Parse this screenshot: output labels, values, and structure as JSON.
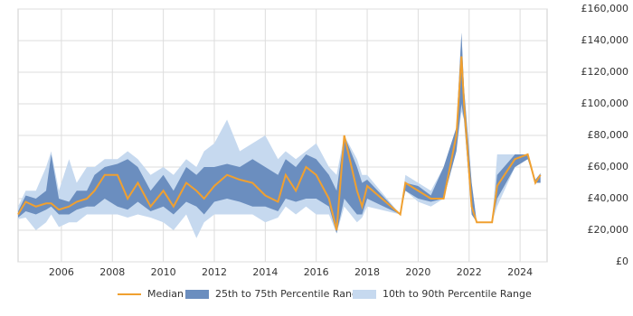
{
  "chart_data": {
    "type": "range-line",
    "x": [
      2004.3,
      2004.6,
      2005.0,
      2005.4,
      2005.6,
      2005.9,
      2006.3,
      2006.6,
      2007.0,
      2007.3,
      2007.7,
      2008.2,
      2008.6,
      2009.0,
      2009.5,
      2010.0,
      2010.4,
      2010.9,
      2011.3,
      2011.6,
      2012.0,
      2012.5,
      2013.0,
      2013.5,
      2014.0,
      2014.5,
      2014.8,
      2015.2,
      2015.6,
      2016.0,
      2016.5,
      2016.8,
      2017.1,
      2017.6,
      2017.8,
      2018.0,
      2019.3,
      2019.5,
      2020.0,
      2020.5,
      2021.0,
      2021.5,
      2021.7,
      2021.8,
      2022.1,
      2022.3,
      2022.9,
      2023.1,
      2023.8,
      2024.3,
      2024.6,
      2024.8
    ],
    "series": [
      {
        "name": "10th to 90th Percentile Range",
        "color": "#c6d9ef",
        "lower": [
          27000,
          28000,
          20000,
          25000,
          30000,
          22000,
          25000,
          25000,
          30000,
          30000,
          30000,
          30000,
          28000,
          30000,
          28000,
          25000,
          20000,
          30000,
          15000,
          25000,
          30000,
          30000,
          30000,
          30000,
          25000,
          28000,
          35000,
          30000,
          35000,
          30000,
          30000,
          18000,
          35000,
          25000,
          28000,
          35000,
          30000,
          45000,
          38000,
          35000,
          40000,
          70000,
          95000,
          90000,
          30000,
          25000,
          25000,
          35000,
          60000,
          65000,
          50000,
          50000
        ],
        "upper": [
          35000,
          45000,
          45000,
          60000,
          70000,
          45000,
          65000,
          50000,
          60000,
          60000,
          65000,
          65000,
          70000,
          65000,
          55000,
          60000,
          55000,
          65000,
          60000,
          70000,
          75000,
          90000,
          70000,
          75000,
          80000,
          65000,
          70000,
          65000,
          70000,
          75000,
          60000,
          55000,
          80000,
          65000,
          55000,
          55000,
          30000,
          55000,
          50000,
          45000,
          60000,
          85000,
          145000,
          110000,
          50000,
          25000,
          25000,
          68000,
          68000,
          68000,
          52000,
          56000
        ]
      },
      {
        "name": "25th to 75th Percentile Range",
        "color": "#6b8ebf",
        "lower": [
          28000,
          32000,
          30000,
          33000,
          35000,
          30000,
          30000,
          33000,
          35000,
          35000,
          40000,
          35000,
          33000,
          38000,
          32000,
          35000,
          30000,
          38000,
          35000,
          30000,
          38000,
          40000,
          38000,
          35000,
          35000,
          32000,
          40000,
          38000,
          40000,
          40000,
          35000,
          18000,
          40000,
          30000,
          30000,
          40000,
          30000,
          45000,
          40000,
          38000,
          40000,
          70000,
          100000,
          90000,
          30000,
          25000,
          25000,
          40000,
          60000,
          65000,
          50000,
          50000
        ],
        "upper": [
          32000,
          42000,
          40000,
          45000,
          68000,
          40000,
          38000,
          45000,
          45000,
          55000,
          60000,
          62000,
          65000,
          60000,
          45000,
          55000,
          45000,
          60000,
          55000,
          60000,
          60000,
          62000,
          60000,
          65000,
          60000,
          55000,
          65000,
          60000,
          68000,
          65000,
          55000,
          45000,
          80000,
          60000,
          50000,
          52000,
          30000,
          50000,
          48000,
          42000,
          60000,
          85000,
          145000,
          110000,
          50000,
          25000,
          25000,
          55000,
          68000,
          68000,
          52000,
          56000
        ]
      },
      {
        "name": "Median",
        "color": "#f0a030",
        "values": [
          30000,
          38000,
          35000,
          37000,
          37000,
          33000,
          35000,
          38000,
          40000,
          45000,
          55000,
          55000,
          40000,
          50000,
          35000,
          45000,
          35000,
          50000,
          45000,
          40000,
          48000,
          55000,
          52000,
          50000,
          42000,
          38000,
          55000,
          45000,
          60000,
          55000,
          40000,
          20000,
          80000,
          45000,
          35000,
          48000,
          30000,
          50000,
          45000,
          40000,
          40000,
          80000,
          130000,
          100000,
          35000,
          25000,
          25000,
          48000,
          65000,
          68000,
          50000,
          55000
        ]
      }
    ],
    "xlim": [
      2004.3,
      2025.06
    ],
    "xticks": [
      2006,
      2008,
      2010,
      2012,
      2014,
      2016,
      2018,
      2020,
      2022,
      2024
    ],
    "ylim": [
      0,
      160000
    ],
    "yticks": [
      {
        "value": 0,
        "label": "£0"
      },
      {
        "value": 20000,
        "label": "£20,000"
      },
      {
        "value": 40000,
        "label": "£40,000"
      },
      {
        "value": 60000,
        "label": "£60,000"
      },
      {
        "value": 80000,
        "label": "£80,000"
      },
      {
        "value": 100000,
        "label": "£100,000"
      },
      {
        "value": 120000,
        "label": "£120,000"
      },
      {
        "value": 140000,
        "label": "£140,000"
      },
      {
        "value": 160000,
        "label": "£160,000"
      }
    ],
    "grid": true
  }
}
